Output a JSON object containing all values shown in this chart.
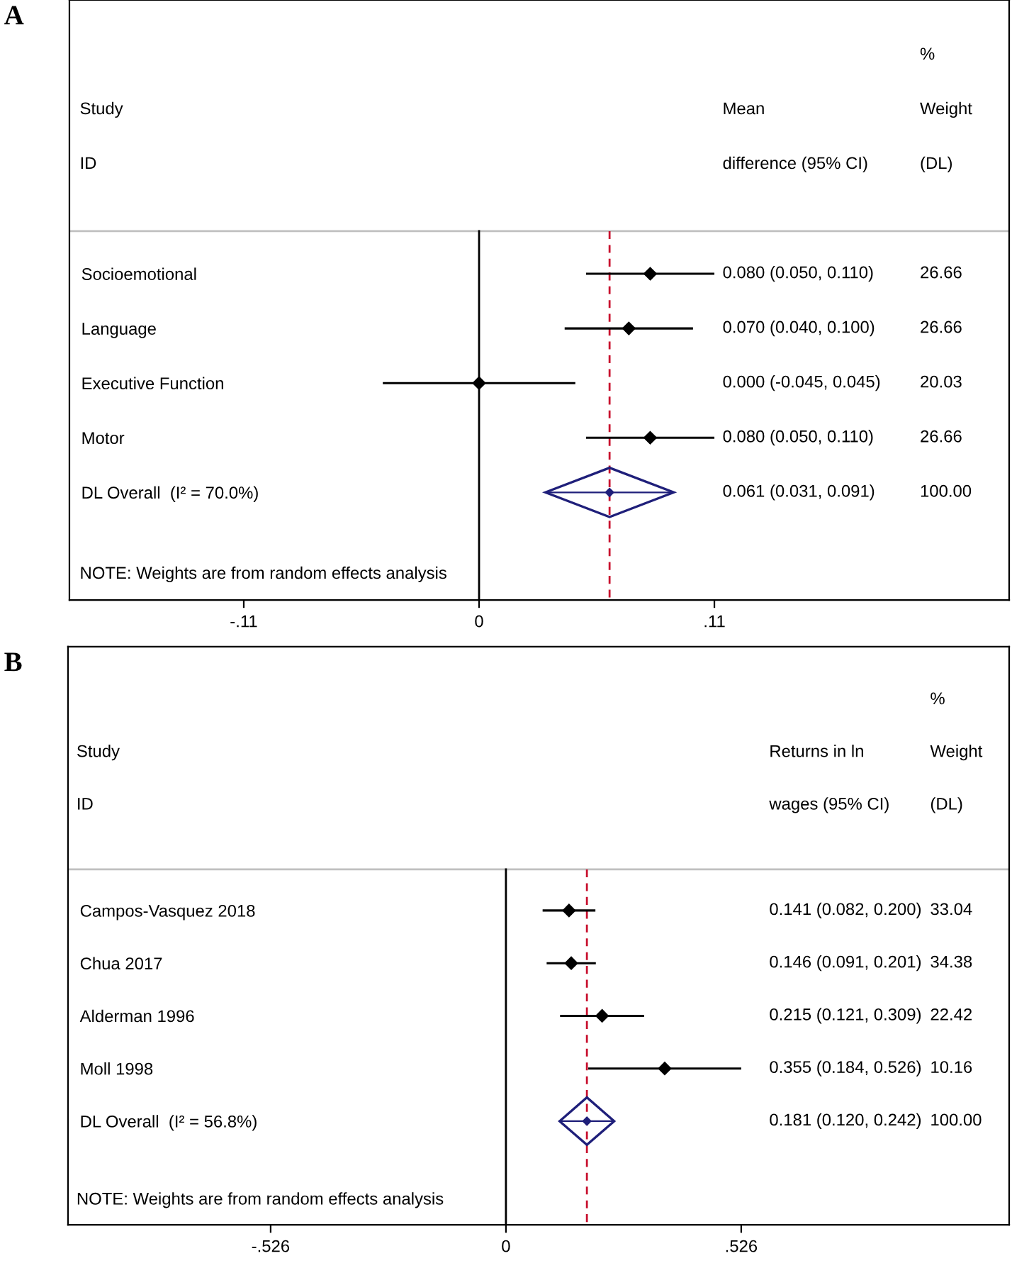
{
  "chart_data": [
    {
      "type": "scatter",
      "title": "A",
      "orientation": "horizontal",
      "categories": [
        "Socioemotional",
        "Language",
        "Executive Function",
        "Motor",
        "DL Overall  (I² = 70.0%)"
      ],
      "series": [
        {
          "color": "#000000",
          "marker": "diamond",
          "values": [
            0.08,
            0.07,
            0.0,
            0.08,
            null
          ],
          "errors": [
            [
              0.05,
              0.11
            ],
            [
              0.04,
              0.1
            ],
            [
              -0.045,
              0.045
            ],
            [
              0.05,
              0.11
            ],
            null
          ]
        },
        {
          "type": "scatter",
          "marker": "diamond",
          "color": "#1f1f7a",
          "values": [
            null,
            null,
            null,
            null,
            0.061
          ],
          "errors": [
            null,
            null,
            null,
            null,
            [
              0.031,
              0.091
            ]
          ]
        }
      ],
      "xlim": [
        -0.1915,
        0.2478
      ],
      "xticks": [
        {
          "value": -0.11,
          "label": "-.11"
        },
        0,
        {
          "value": 0.11,
          "label": ".11"
        }
      ],
      "ref_lines": [
        {
          "axis": "x",
          "value": 0,
          "color": "#000000",
          "line_style": "solid"
        },
        {
          "axis": "x",
          "value": 0.061,
          "color": "#c8102e",
          "line_style": "dashed"
        }
      ],
      "annotations": [
        "Study",
        "ID",
        "Mean",
        "difference (95% CI)",
        "%",
        "Weight",
        "(DL)",
        "NOTE: Weights are from random effects analysis",
        "0.080 (0.050, 0.110)",
        "0.070 (0.040, 0.100)",
        "0.000 (-0.045, 0.045)",
        "0.080 (0.050, 0.110)",
        "0.061 (0.031, 0.091)",
        "26.66",
        "26.66",
        "20.03",
        "26.66",
        "100.00"
      ]
    },
    {
      "type": "scatter",
      "title": "B",
      "orientation": "horizontal",
      "categories": [
        "Campos-Vasquez 2018",
        "Chua 2017",
        "Alderman 1996",
        "Moll 1998",
        "DL Overall  (I² = 56.8%)"
      ],
      "series": [
        {
          "color": "#000000",
          "marker": "diamond",
          "values": [
            0.141,
            0.146,
            0.215,
            0.355,
            null
          ],
          "errors": [
            [
              0.082,
              0.2
            ],
            [
              0.091,
              0.201
            ],
            [
              0.121,
              0.309
            ],
            [
              0.184,
              0.526
            ],
            null
          ]
        },
        {
          "type": "scatter",
          "marker": "diamond",
          "color": "#1f1f7a",
          "values": [
            null,
            null,
            null,
            null,
            0.181
          ],
          "errors": [
            null,
            null,
            null,
            null,
            [
              0.12,
              0.242
            ]
          ]
        }
      ],
      "xlim": [
        -0.979,
        1.125
      ],
      "xticks": [
        {
          "value": -0.526,
          "label": "-.526"
        },
        0,
        {
          "value": 0.526,
          "label": ".526"
        }
      ],
      "ref_lines": [
        {
          "axis": "x",
          "value": 0,
          "color": "#000000",
          "line_style": "solid"
        },
        {
          "axis": "x",
          "value": 0.181,
          "color": "#c8102e",
          "line_style": "dashed"
        }
      ],
      "annotations": [
        "Study",
        "ID",
        "Returns in ln",
        "wages (95% CI)",
        "%",
        "Weight",
        "(DL)",
        "NOTE: Weights are from random effects analysis",
        "0.141 (0.082, 0.200)",
        "0.146 (0.091, 0.201)",
        "0.215 (0.121, 0.309)",
        "0.355 (0.184, 0.526)",
        "0.181 (0.120, 0.242)",
        "33.04",
        "34.38",
        "22.42",
        "10.16",
        "100.00"
      ]
    }
  ]
}
